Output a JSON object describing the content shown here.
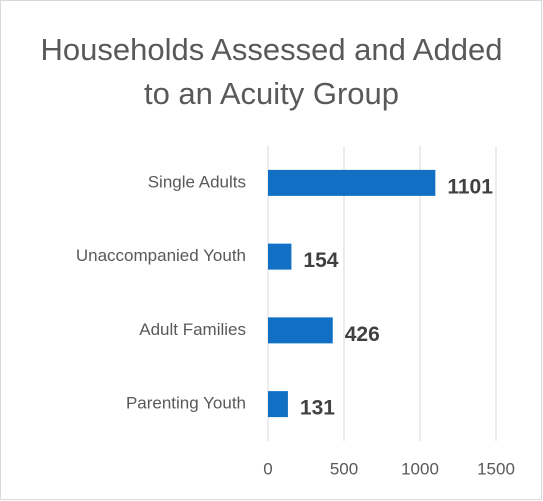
{
  "chart_data": {
    "type": "hbar",
    "title": "Households Assessed and Added to an Acuity Group",
    "categories": [
      "Single Adults",
      "Unaccompanied Youth",
      "Adult Families",
      "Parenting Youth"
    ],
    "values": [
      1101,
      154,
      426,
      131
    ],
    "color": "#1170c4",
    "xlim": [
      0,
      1500
    ],
    "xticks": [
      0,
      500,
      1000,
      1500
    ],
    "grid": true
  }
}
